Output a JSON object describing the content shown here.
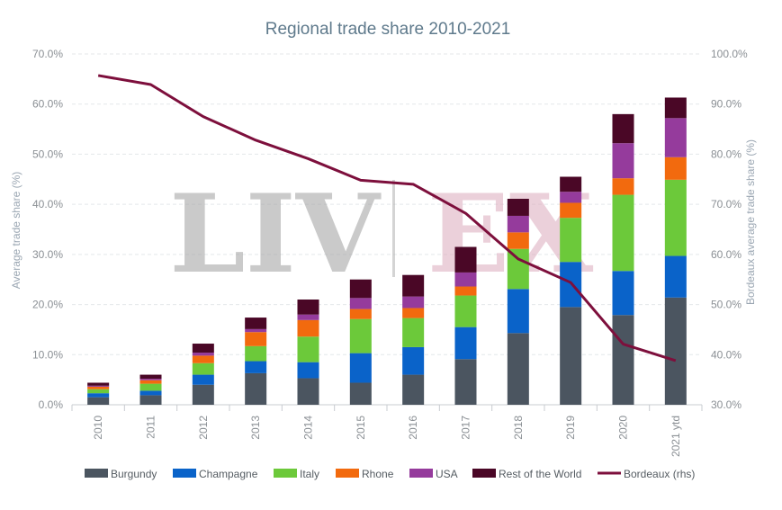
{
  "chart_data": {
    "type": "bar",
    "stacked": true,
    "title": "Regional trade share 2010-2021",
    "ylabel": "Average trade share (%)",
    "y2label": "Bordeaux average trade share (%)",
    "watermark": {
      "left": "LIV",
      "right": "EX"
    },
    "ylim": [
      0,
      70
    ],
    "y2lim": [
      30,
      100
    ],
    "yticks": [
      "0.0%",
      "10.0%",
      "20.0%",
      "30.0%",
      "40.0%",
      "50.0%",
      "60.0%",
      "70.0%"
    ],
    "y2ticks": [
      "30.0%",
      "40.0%",
      "50.0%",
      "60.0%",
      "70.0%",
      "80.0%",
      "90.0%",
      "100.0%"
    ],
    "categories": [
      "2010",
      "2011",
      "2012",
      "2013",
      "2014",
      "2015",
      "2016",
      "2017",
      "2018",
      "2019",
      "2020",
      "2021 ytd"
    ],
    "grid": true,
    "legend_position": "bottom",
    "series": [
      {
        "name": "Burgundy",
        "color": "#4b5560",
        "values": [
          1.5,
          1.9,
          4.0,
          6.3,
          5.3,
          4.4,
          6.0,
          9.1,
          14.3,
          19.5,
          17.9,
          21.4
        ]
      },
      {
        "name": "Champagne",
        "color": "#0a63c9",
        "values": [
          0.8,
          0.9,
          2.0,
          2.4,
          3.2,
          5.9,
          5.5,
          6.4,
          8.8,
          9.0,
          8.8,
          8.3
        ]
      },
      {
        "name": "Italy",
        "color": "#6cc93a",
        "values": [
          0.8,
          1.4,
          2.3,
          3.0,
          5.1,
          6.8,
          5.8,
          6.3,
          8.0,
          8.8,
          15.2,
          15.2
        ]
      },
      {
        "name": "Rhone",
        "color": "#f26a0e",
        "values": [
          0.5,
          0.7,
          1.5,
          2.8,
          3.3,
          2.0,
          2.0,
          1.8,
          3.3,
          3.0,
          3.3,
          4.5
        ]
      },
      {
        "name": "USA",
        "color": "#953b9c",
        "values": [
          0.2,
          0.3,
          0.6,
          0.6,
          1.1,
          2.2,
          2.3,
          2.8,
          3.3,
          2.2,
          7.0,
          7.8
        ]
      },
      {
        "name": "Rest of the World",
        "color": "#4a0726",
        "values": [
          0.6,
          0.8,
          1.8,
          2.3,
          3.0,
          3.7,
          4.3,
          5.1,
          3.4,
          3.0,
          5.8,
          4.1
        ]
      }
    ],
    "line": {
      "name": "Bordeaux (rhs)",
      "axis": "right",
      "color": "#7d0f3c",
      "values": [
        95.7,
        93.9,
        87.5,
        82.8,
        79.1,
        74.8,
        74.0,
        68.2,
        59.1,
        54.4,
        42.1,
        38.8
      ]
    }
  }
}
